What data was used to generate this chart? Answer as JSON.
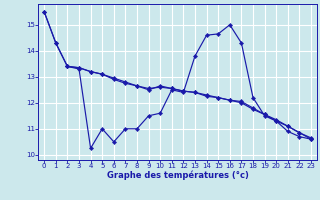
{
  "xlabel": "Graphe des températures (°c)",
  "xlim": [
    -0.5,
    23.5
  ],
  "ylim": [
    9.8,
    15.8
  ],
  "yticks": [
    10,
    11,
    12,
    13,
    14,
    15
  ],
  "xticks": [
    0,
    1,
    2,
    3,
    4,
    5,
    6,
    7,
    8,
    9,
    10,
    11,
    12,
    13,
    14,
    15,
    16,
    17,
    18,
    19,
    20,
    21,
    22,
    23
  ],
  "background_color": "#cce8ec",
  "grid_color": "#ffffff",
  "line_color": "#1a1aaa",
  "line1_x": [
    0,
    1,
    2,
    3,
    4,
    5,
    6,
    7,
    8,
    9,
    10,
    11,
    12,
    13,
    14,
    15,
    16,
    17,
    18,
    19,
    20,
    21,
    22,
    23
  ],
  "line1_y": [
    15.5,
    14.3,
    13.4,
    13.3,
    10.25,
    11.0,
    10.5,
    11.0,
    11.0,
    11.5,
    11.6,
    12.5,
    12.4,
    13.8,
    14.6,
    14.65,
    15.0,
    14.3,
    12.2,
    11.5,
    11.3,
    10.9,
    10.7,
    10.6
  ],
  "line2_x": [
    0,
    1,
    2,
    3,
    4,
    5,
    6,
    7,
    8,
    9,
    10,
    11,
    12,
    13,
    14,
    15,
    16,
    17,
    18,
    19,
    20,
    21,
    22,
    23
  ],
  "line2_y": [
    15.5,
    14.3,
    13.4,
    13.35,
    13.2,
    13.1,
    12.9,
    12.75,
    12.65,
    12.5,
    12.65,
    12.55,
    12.45,
    12.4,
    12.3,
    12.2,
    12.1,
    12.0,
    11.75,
    11.55,
    11.3,
    11.1,
    10.85,
    10.6
  ],
  "line3_x": [
    2,
    3,
    4,
    5,
    6,
    7,
    8,
    9,
    10,
    11,
    12,
    13,
    14,
    15,
    16,
    17,
    18,
    19,
    20,
    21,
    22,
    23
  ],
  "line3_y": [
    13.4,
    13.35,
    13.2,
    13.1,
    12.95,
    12.8,
    12.65,
    12.55,
    12.6,
    12.55,
    12.45,
    12.4,
    12.25,
    12.2,
    12.1,
    12.05,
    11.8,
    11.55,
    11.35,
    11.1,
    10.85,
    10.65
  ]
}
